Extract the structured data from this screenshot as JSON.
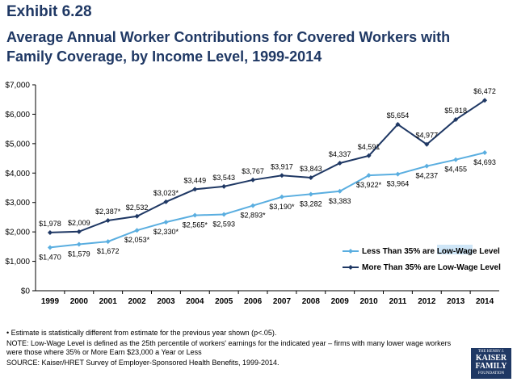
{
  "header": {
    "exhibit": "Exhibit 6.28",
    "title": "Average Annual Worker Contributions for Covered Workers with Family Coverage, by Income Level, 1999-2014"
  },
  "colors": {
    "low": "#5aaee0",
    "high": "#1f3864"
  },
  "chart_data": {
    "type": "line",
    "title": "",
    "xlabel": "",
    "ylabel": "",
    "categories": [
      "1999",
      "2000",
      "2001",
      "2002",
      "2003",
      "2004",
      "2005",
      "2006",
      "2007",
      "2008",
      "2009",
      "2010",
      "2011",
      "2012",
      "2013",
      "2014"
    ],
    "ylim": [
      0,
      7000
    ],
    "yticks": [
      "$0",
      "$1,000",
      "$2,000",
      "$3,000",
      "$4,000",
      "$5,000",
      "$6,000",
      "$7,000"
    ],
    "grid": false,
    "legend": "right",
    "series": [
      {
        "name": "Less Than 35% are Low-Wage Level",
        "values": [
          1470,
          1579,
          1672,
          2053,
          2330,
          2565,
          2593,
          2893,
          3190,
          3282,
          3383,
          3922,
          3964,
          4237,
          4455,
          4693
        ],
        "labels": [
          "$1,470",
          "$1,579",
          "$1,672",
          "$2,053*",
          "$2,330*",
          "$2,565*",
          "$2,593",
          "$2,893*",
          "$3,190*",
          "$3,282",
          "$3,383",
          "$3,922*",
          "$3,964",
          "$4,237",
          "$4,455",
          "$4,693"
        ]
      },
      {
        "name": "More Than 35% are Low-Wage Level",
        "values": [
          1978,
          2009,
          2387,
          2532,
          3023,
          3449,
          3543,
          3767,
          3917,
          3843,
          4337,
          4591,
          5654,
          4977,
          5818,
          6472
        ],
        "labels": [
          "$1,978",
          "$2,009",
          "$2,387*",
          "$2,532",
          "$3,023*",
          "$3,449",
          "$3,543",
          "$3,767",
          "$3,917",
          "$3,843",
          "$4,337",
          "$4,591",
          "$5,654",
          "$4,977",
          "$5,818",
          "$6,472"
        ]
      }
    ]
  },
  "legend": {
    "low_prefix": "Less Than 35% are ",
    "low_highlight": "Low-Wage",
    "low_suffix": " Level",
    "high": "More Than 35% are Low-Wage Level"
  },
  "footnotes": {
    "estimate": "•   Estimate is statistically different from estimate for the previous year shown (p<.05).",
    "note": "NOTE: Low-Wage Level is defined as the 25th percentile of workers' earnings for the indicated year – firms with many lower wage workers were those where 35% or More Earn $23,000 a Year or Less",
    "source": "SOURCE:  Kaiser/HRET Survey of Employer-Sponsored Health Benefits, 1999-2014."
  },
  "logo": {
    "line1": "THE HENRY J.",
    "line2a": "KAISER",
    "line2b": "FAMILY",
    "line3": "FOUNDATION"
  }
}
